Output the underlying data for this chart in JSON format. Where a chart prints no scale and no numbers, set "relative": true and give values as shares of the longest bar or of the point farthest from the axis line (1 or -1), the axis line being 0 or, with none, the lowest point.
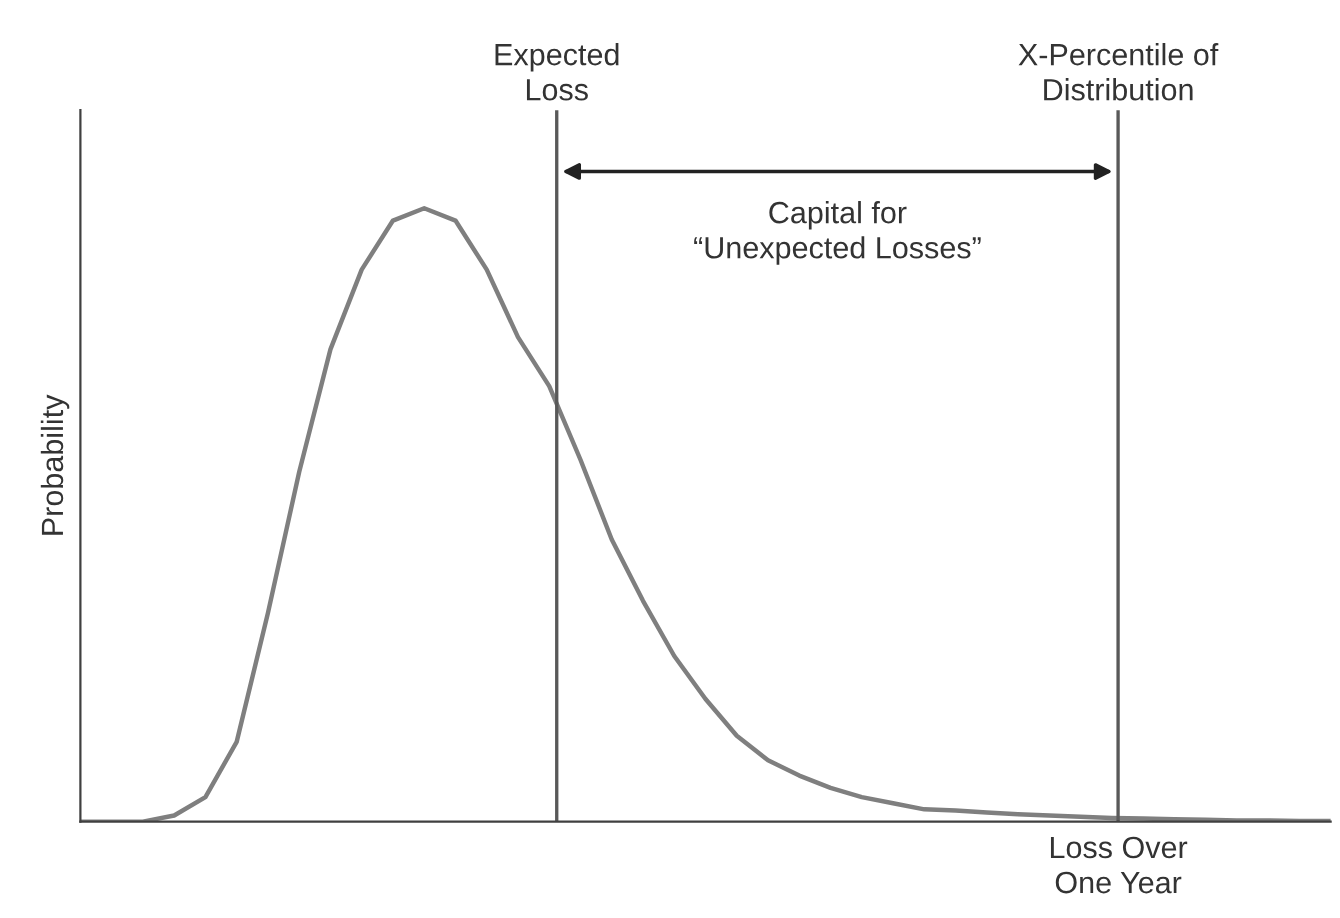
{
  "chart_data": {
    "type": "line",
    "relative": true,
    "ylabel": "Probability",
    "xlabel": "Loss Over\nOne Year",
    "categories": [
      null,
      null,
      null,
      null,
      null,
      null,
      null,
      null,
      null,
      null,
      null,
      null,
      null,
      null,
      null,
      null,
      null,
      null,
      null,
      null,
      null,
      null,
      null,
      null,
      null,
      null,
      null,
      null,
      null,
      null,
      null,
      null,
      null,
      null,
      null,
      null,
      null,
      null,
      null,
      null,
      null
    ],
    "series": [
      {
        "color": "#7f7f7f",
        "values": [
          0,
          0,
          0,
          0.01,
          0.04,
          0.13,
          0.34,
          0.57,
          0.77,
          0.9,
          0.98,
          1.0,
          0.98,
          0.9,
          0.79,
          0.71,
          0.59,
          0.46,
          0.36,
          0.27,
          0.2,
          0.14,
          0.1,
          0.075,
          0.055,
          0.04,
          0.03,
          0.02,
          0.018,
          0.015,
          0.012,
          0.01,
          0.008,
          0.006,
          0.005,
          0.004,
          0.003,
          0.002,
          0.002,
          0.001,
          0.001
        ]
      }
    ],
    "annotations": [
      "Expected\nLoss",
      "X-Percentile of\nDistribution",
      "Capital for\n“Unexpected Losses”"
    ],
    "grid": false,
    "legend": false,
    "marker": "none",
    "line_style": "solid"
  }
}
